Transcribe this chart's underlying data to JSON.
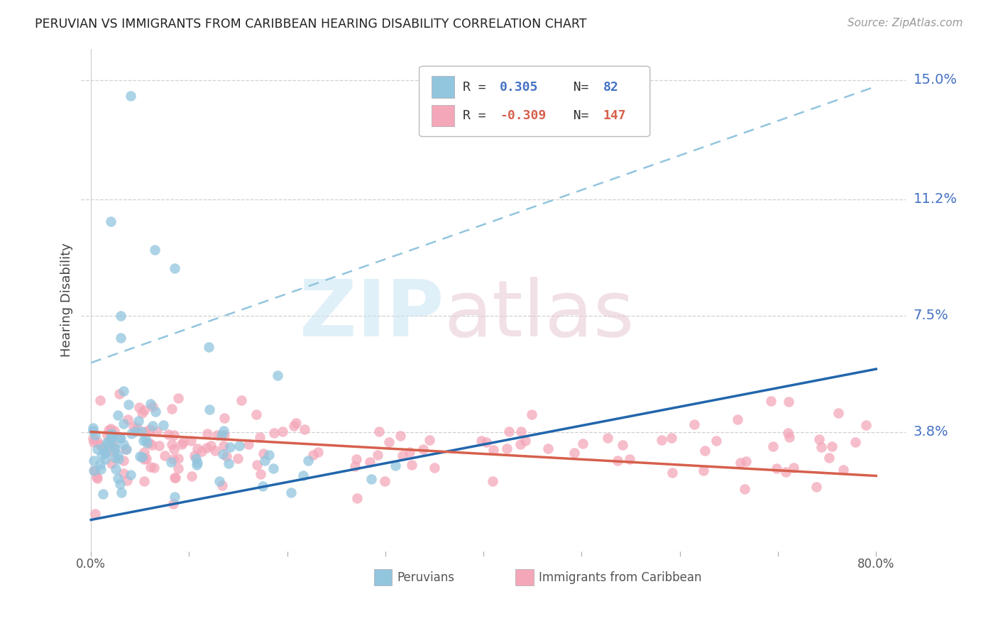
{
  "title": "PERUVIAN VS IMMIGRANTS FROM CARIBBEAN HEARING DISABILITY CORRELATION CHART",
  "source": "Source: ZipAtlas.com",
  "ylabel": "Hearing Disability",
  "ytick_labels": [
    "3.8%",
    "7.5%",
    "11.2%",
    "15.0%"
  ],
  "ytick_values": [
    0.038,
    0.075,
    0.112,
    0.15
  ],
  "xlim": [
    0.0,
    0.8
  ],
  "ylim": [
    0.0,
    0.16
  ],
  "blue_color": "#92c5de",
  "pink_color": "#f4a7b9",
  "blue_line_color": "#2166ac",
  "pink_line_color": "#d6604d",
  "dashed_line_color": "#92c5de",
  "grid_color": "#d0d0d0",
  "right_label_color": "#4472C4",
  "legend_r1_val": "0.305",
  "legend_r1_n": "82",
  "legend_r2_val": "-0.309",
  "legend_r2_n": "147",
  "blue_line_x0": 0.0,
  "blue_line_y0": 0.01,
  "blue_line_x1": 0.8,
  "blue_line_y1": 0.058,
  "pink_line_x0": 0.0,
  "pink_line_y0": 0.038,
  "pink_line_x1": 0.8,
  "pink_line_y1": 0.024,
  "dashed_line_x0": 0.0,
  "dashed_line_y0": 0.06,
  "dashed_line_x1": 0.8,
  "dashed_line_y1": 0.148
}
